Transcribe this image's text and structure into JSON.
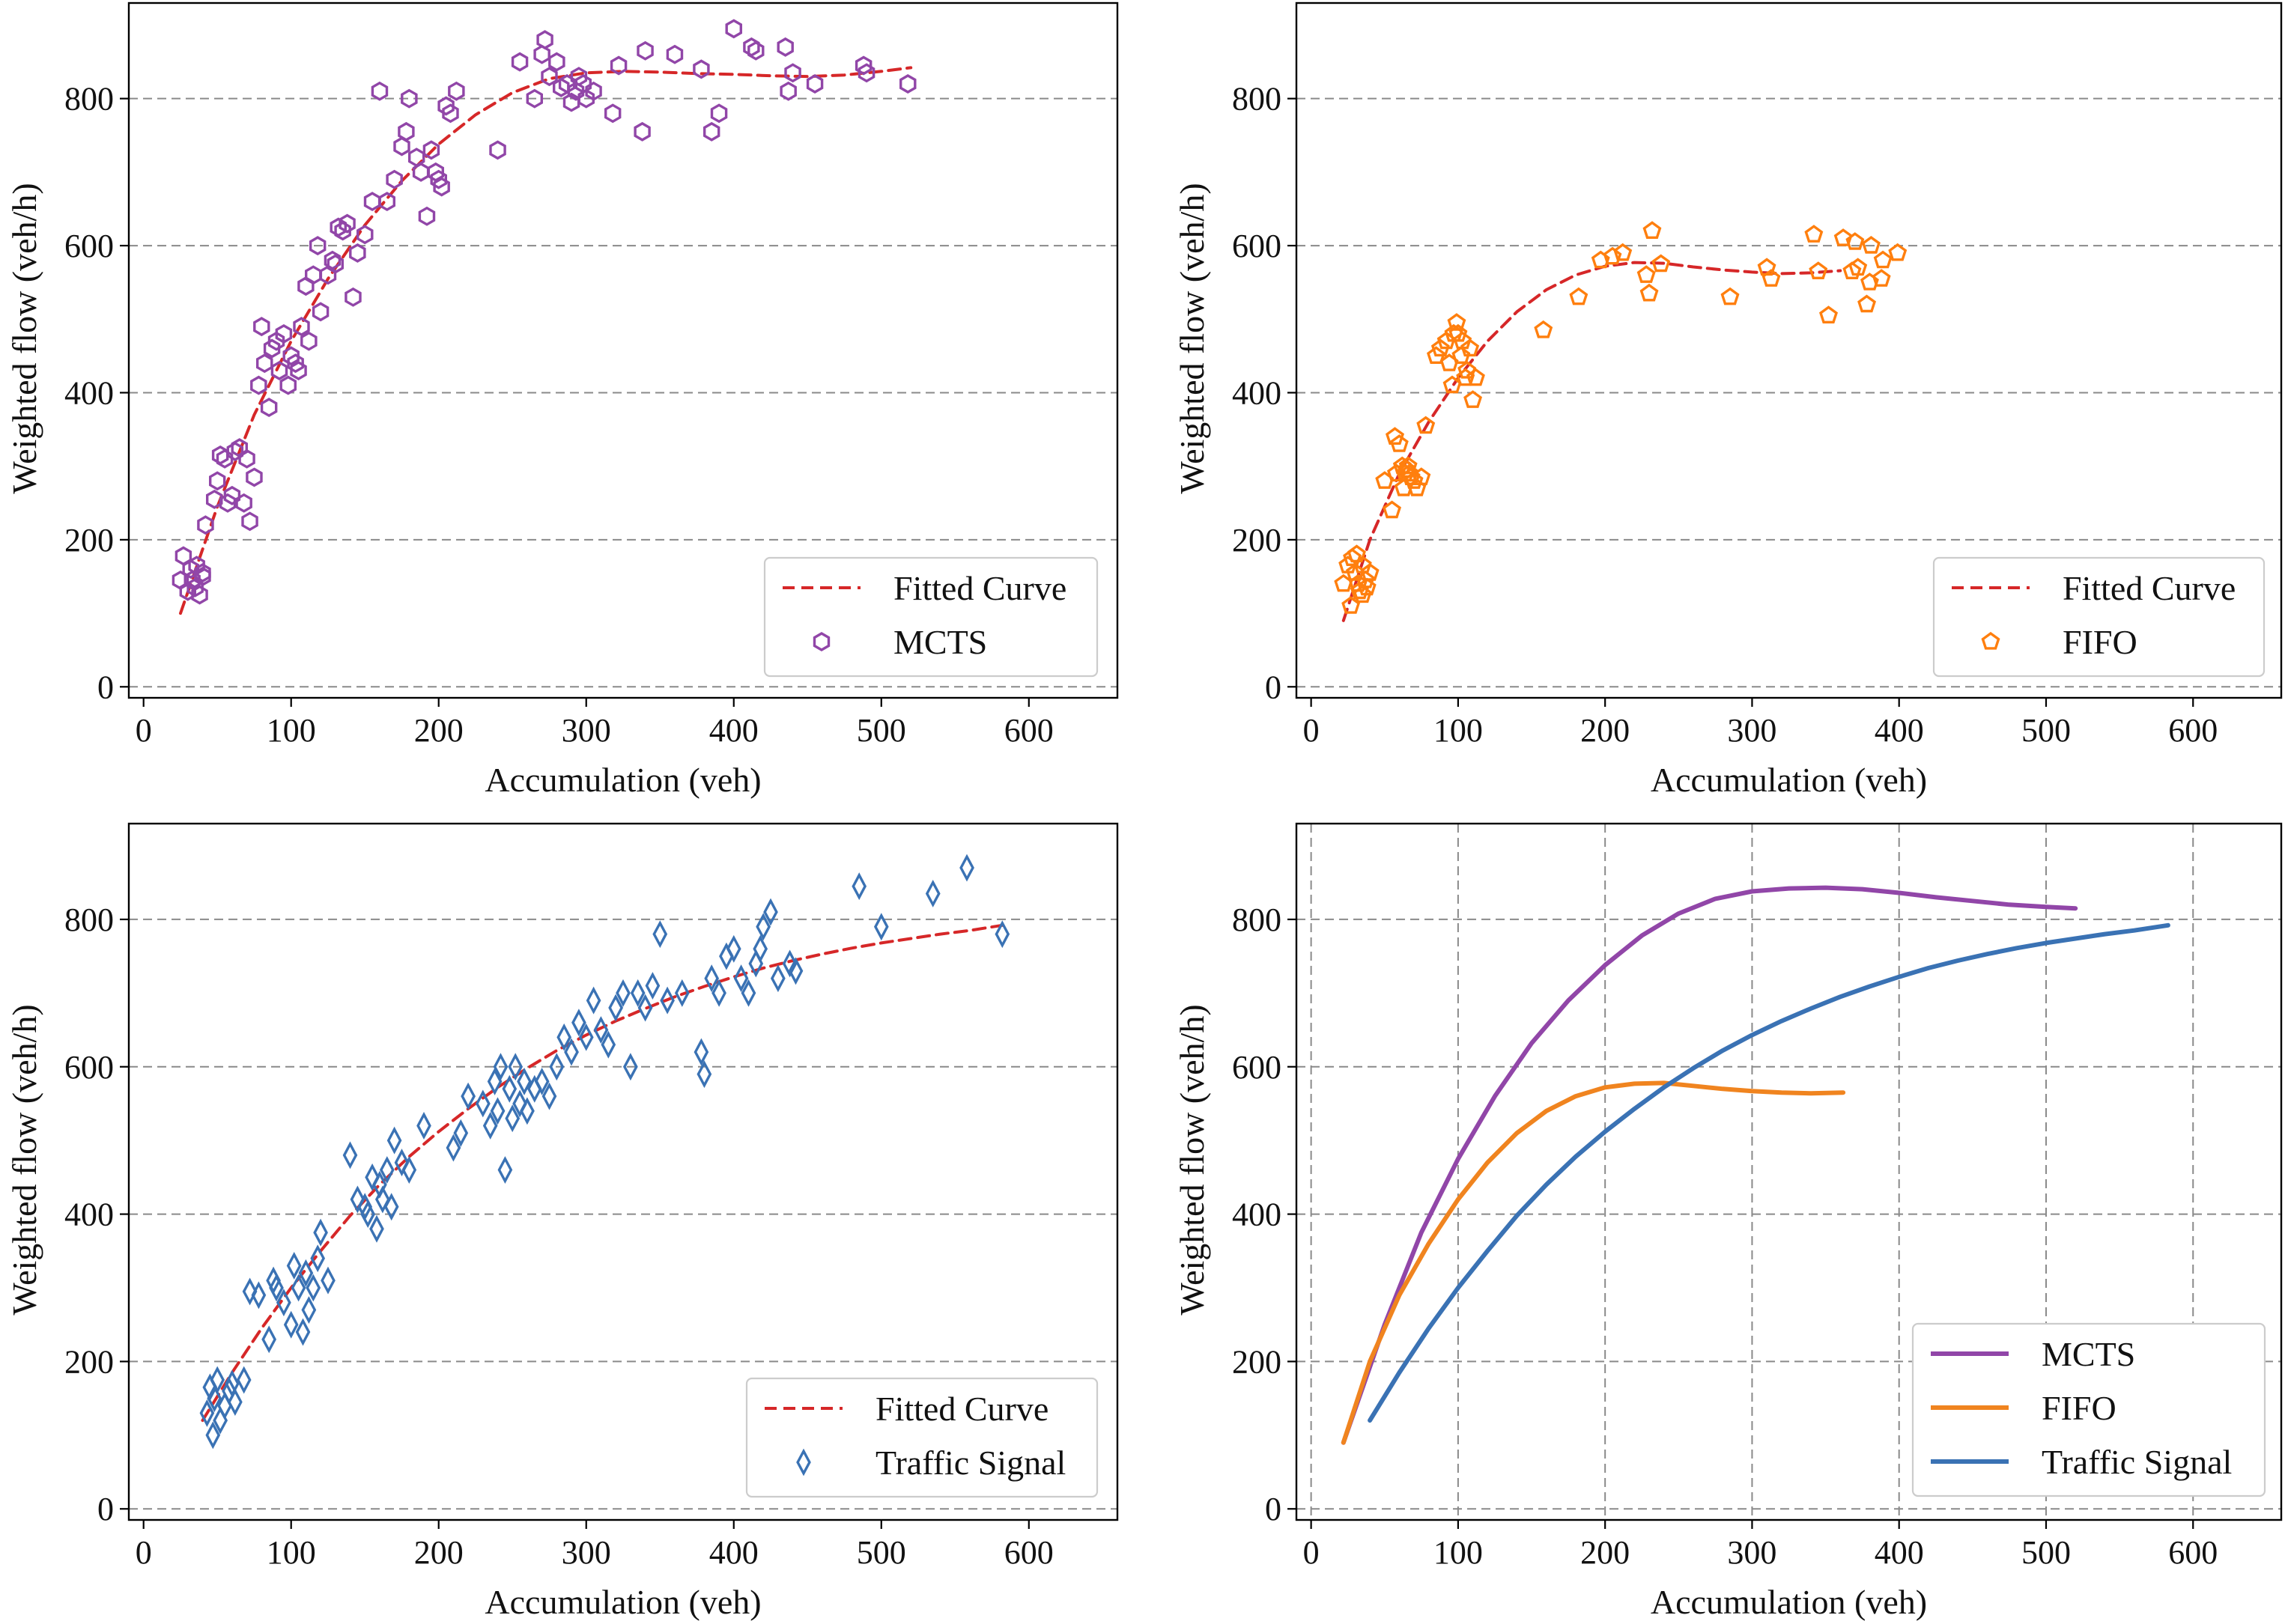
{
  "figure": {
    "panels": [
      {
        "id": "tl",
        "xlabel": "Accumulation (veh)",
        "ylabel": "Weighted flow (veh/h)"
      },
      {
        "id": "tr",
        "xlabel": "Accumulation (veh)",
        "ylabel": "Weighted flow (veh/h)"
      },
      {
        "id": "bl",
        "xlabel": "Accumulation (veh)",
        "ylabel": "Weighted flow (veh/h)"
      },
      {
        "id": "br",
        "xlabel": "Accumulation (veh)",
        "ylabel": "Weighted flow (veh/h)"
      }
    ]
  },
  "chart_data": [
    {
      "type": "scatter",
      "xlabel": "Accumulation (veh)",
      "ylabel": "Weighted flow (veh/h)",
      "xlim": [
        -10,
        660
      ],
      "ylim": [
        -15,
        930
      ],
      "xticks": [
        0,
        100,
        200,
        300,
        400,
        500,
        600
      ],
      "yticks": [
        0,
        200,
        400,
        600,
        800
      ],
      "grid": "horizontal dashed",
      "legend_position": "bottom-right",
      "series": [
        {
          "name": "Fitted Curve",
          "kind": "line",
          "style": "dashed",
          "color": "#d62728",
          "x": [
            25,
            50,
            75,
            100,
            125,
            150,
            175,
            200,
            225,
            250,
            275,
            300,
            325,
            350,
            375,
            400,
            425,
            450,
            475,
            500,
            520
          ],
          "y": [
            100,
            245,
            370,
            470,
            555,
            628,
            688,
            738,
            778,
            808,
            827,
            835,
            837,
            836,
            834,
            833,
            831,
            830,
            832,
            837,
            842
          ]
        },
        {
          "name": "MCTS",
          "kind": "scatter",
          "marker": "hexagon",
          "color": "#9146a8",
          "x": [
            25,
            27,
            30,
            32,
            33,
            35,
            36,
            38,
            40,
            40,
            42,
            48,
            50,
            52,
            55,
            57,
            60,
            62,
            65,
            68,
            70,
            72,
            75,
            78,
            80,
            82,
            85,
            87,
            90,
            92,
            95,
            98,
            100,
            103,
            105,
            107,
            110,
            112,
            115,
            118,
            120,
            125,
            128,
            130,
            132,
            135,
            138,
            142,
            145,
            150,
            155,
            160,
            165,
            170,
            175,
            178,
            180,
            185,
            188,
            192,
            195,
            198,
            200,
            202,
            205,
            208,
            212,
            240,
            255,
            265,
            270,
            272,
            275,
            280,
            283,
            287,
            290,
            293,
            295,
            298,
            300,
            305,
            318,
            322,
            338,
            340,
            360,
            378,
            385,
            390,
            400,
            412,
            415,
            435,
            437,
            440,
            455,
            488,
            490,
            518
          ],
          "y": [
            145,
            178,
            130,
            160,
            145,
            135,
            165,
            125,
            150,
            155,
            220,
            255,
            280,
            315,
            310,
            250,
            260,
            320,
            325,
            250,
            310,
            225,
            285,
            410,
            490,
            440,
            380,
            460,
            470,
            430,
            480,
            410,
            450,
            440,
            430,
            490,
            545,
            470,
            560,
            600,
            510,
            560,
            580,
            575,
            625,
            620,
            630,
            530,
            590,
            615,
            660,
            810,
            660,
            690,
            735,
            755,
            800,
            720,
            700,
            640,
            730,
            700,
            690,
            680,
            790,
            780,
            810,
            730,
            850,
            800,
            860,
            880,
            830,
            850,
            815,
            820,
            795,
            810,
            830,
            820,
            800,
            810,
            780,
            845,
            755,
            865,
            860,
            840,
            755,
            780,
            895,
            870,
            865,
            870,
            810,
            835,
            820,
            845,
            835,
            820
          ]
        }
      ]
    },
    {
      "type": "scatter",
      "xlabel": "Accumulation (veh)",
      "ylabel": "Weighted flow (veh/h)",
      "xlim": [
        -10,
        660
      ],
      "ylim": [
        -15,
        930
      ],
      "xticks": [
        0,
        100,
        200,
        300,
        400,
        500,
        600
      ],
      "yticks": [
        0,
        200,
        400,
        600,
        800
      ],
      "grid": "horizontal dashed",
      "legend_position": "bottom-right",
      "series": [
        {
          "name": "Fitted Curve",
          "kind": "line",
          "style": "dashed",
          "color": "#d62728",
          "x": [
            22,
            40,
            60,
            80,
            100,
            120,
            140,
            160,
            180,
            200,
            220,
            240,
            260,
            280,
            300,
            320,
            340,
            360
          ],
          "y": [
            90,
            200,
            290,
            360,
            420,
            470,
            510,
            540,
            560,
            572,
            577,
            576,
            571,
            567,
            564,
            562,
            563,
            566
          ]
        },
        {
          "name": "FIFO",
          "kind": "scatter",
          "marker": "pentagon",
          "color": "#ff7f0e",
          "x": [
            22,
            25,
            27,
            28,
            30,
            31,
            32,
            33,
            35,
            35,
            37,
            38,
            40,
            50,
            55,
            57,
            58,
            60,
            62,
            63,
            64,
            65,
            66,
            67,
            68,
            70,
            72,
            75,
            78,
            85,
            88,
            92,
            94,
            96,
            97,
            99,
            100,
            102,
            103,
            105,
            106,
            108,
            110,
            112,
            158,
            182,
            197,
            205,
            212,
            228,
            230,
            232,
            238,
            285,
            310,
            313,
            342,
            345,
            352,
            362,
            368,
            370,
            372,
            378,
            380,
            381,
            388,
            389,
            399
          ],
          "y": [
            140,
            165,
            110,
            175,
            155,
            180,
            140,
            130,
            165,
            125,
            145,
            135,
            155,
            280,
            240,
            340,
            290,
            330,
            300,
            270,
            290,
            295,
            300,
            290,
            285,
            280,
            270,
            285,
            355,
            450,
            460,
            470,
            440,
            410,
            480,
            495,
            480,
            450,
            470,
            420,
            430,
            460,
            390,
            420,
            485,
            530,
            580,
            585,
            590,
            560,
            535,
            620,
            575,
            530,
            570,
            555,
            615,
            565,
            505,
            610,
            565,
            605,
            570,
            520,
            550,
            600,
            555,
            580,
            590
          ]
        }
      ]
    },
    {
      "type": "scatter",
      "xlabel": "Accumulation (veh)",
      "ylabel": "Weighted flow (veh/h)",
      "xlim": [
        -10,
        660
      ],
      "ylim": [
        -15,
        930
      ],
      "xticks": [
        0,
        100,
        200,
        300,
        400,
        500,
        600
      ],
      "yticks": [
        0,
        200,
        400,
        600,
        800
      ],
      "grid": "horizontal dashed",
      "legend_position": "bottom-right",
      "series": [
        {
          "name": "Fitted Curve",
          "kind": "line",
          "style": "dashed",
          "color": "#d62728",
          "x": [
            40,
            60,
            80,
            100,
            120,
            140,
            160,
            180,
            200,
            220,
            240,
            260,
            280,
            300,
            320,
            340,
            360,
            380,
            400,
            420,
            440,
            460,
            480,
            500,
            520,
            540,
            560,
            582
          ],
          "y": [
            120,
            185,
            245,
            300,
            350,
            398,
            440,
            478,
            512,
            543,
            572,
            598,
            622,
            643,
            662,
            679,
            695,
            709,
            722,
            734,
            744,
            753,
            761,
            768,
            774,
            780,
            785,
            792
          ]
        },
        {
          "name": "Traffic Signal",
          "kind": "scatter",
          "marker": "diamond",
          "color": "#3a72b4",
          "x": [
            43,
            45,
            47,
            48,
            50,
            52,
            55,
            58,
            60,
            62,
            68,
            72,
            78,
            85,
            88,
            90,
            95,
            100,
            102,
            105,
            108,
            110,
            112,
            115,
            118,
            120,
            125,
            140,
            145,
            150,
            152,
            155,
            158,
            160,
            162,
            165,
            168,
            170,
            175,
            180,
            190,
            210,
            215,
            220,
            230,
            235,
            238,
            240,
            242,
            245,
            248,
            250,
            252,
            255,
            258,
            260,
            265,
            270,
            275,
            280,
            285,
            290,
            295,
            300,
            305,
            310,
            315,
            320,
            325,
            330,
            335,
            340,
            345,
            350,
            355,
            365,
            378,
            380,
            385,
            390,
            395,
            400,
            405,
            410,
            415,
            418,
            420,
            425,
            430,
            438,
            442,
            485,
            500,
            535,
            558,
            582
          ],
          "y": [
            130,
            165,
            100,
            150,
            175,
            120,
            140,
            160,
            170,
            145,
            175,
            295,
            290,
            230,
            310,
            300,
            280,
            250,
            330,
            300,
            240,
            320,
            270,
            300,
            340,
            375,
            310,
            480,
            420,
            410,
            400,
            450,
            380,
            440,
            420,
            460,
            410,
            500,
            470,
            460,
            520,
            490,
            510,
            560,
            550,
            520,
            580,
            540,
            600,
            460,
            570,
            530,
            600,
            550,
            580,
            540,
            570,
            580,
            560,
            600,
            640,
            620,
            660,
            640,
            690,
            650,
            630,
            680,
            700,
            600,
            700,
            680,
            710,
            780,
            690,
            700,
            620,
            590,
            720,
            700,
            750,
            760,
            720,
            700,
            740,
            760,
            790,
            810,
            720,
            740,
            730,
            845,
            790,
            835,
            870,
            780
          ]
        }
      ]
    },
    {
      "type": "line",
      "xlabel": "Accumulation (veh)",
      "ylabel": "Weighted flow (veh/h)",
      "xlim": [
        -10,
        660
      ],
      "ylim": [
        -15,
        930
      ],
      "xticks": [
        0,
        100,
        200,
        300,
        400,
        500,
        600
      ],
      "yticks": [
        0,
        200,
        400,
        600,
        800
      ],
      "grid": "both dashed",
      "legend_position": "bottom-right",
      "series": [
        {
          "name": "MCTS",
          "color": "#9146a8",
          "x": [
            22,
            50,
            75,
            100,
            125,
            150,
            175,
            200,
            225,
            250,
            275,
            300,
            325,
            350,
            375,
            400,
            425,
            450,
            475,
            500,
            520
          ],
          "y": [
            90,
            250,
            375,
            475,
            560,
            632,
            690,
            738,
            778,
            808,
            828,
            838,
            842,
            843,
            841,
            836,
            830,
            825,
            820,
            817,
            815
          ]
        },
        {
          "name": "FIFO",
          "color": "#f0841f",
          "x": [
            22,
            40,
            60,
            80,
            100,
            120,
            140,
            160,
            180,
            200,
            220,
            240,
            260,
            280,
            300,
            320,
            340,
            362
          ],
          "y": [
            90,
            200,
            290,
            360,
            420,
            470,
            510,
            540,
            560,
            572,
            577,
            578,
            574,
            570,
            567,
            565,
            564,
            565
          ]
        },
        {
          "name": "Traffic Signal",
          "color": "#3a72b4",
          "x": [
            40,
            60,
            80,
            100,
            120,
            140,
            160,
            180,
            200,
            220,
            240,
            260,
            280,
            300,
            320,
            340,
            360,
            380,
            400,
            420,
            440,
            460,
            480,
            500,
            520,
            540,
            560,
            583
          ],
          "y": [
            120,
            185,
            245,
            300,
            350,
            398,
            440,
            478,
            512,
            543,
            572,
            598,
            622,
            643,
            662,
            679,
            695,
            709,
            722,
            734,
            744,
            753,
            761,
            768,
            774,
            780,
            785,
            792
          ]
        }
      ]
    }
  ]
}
